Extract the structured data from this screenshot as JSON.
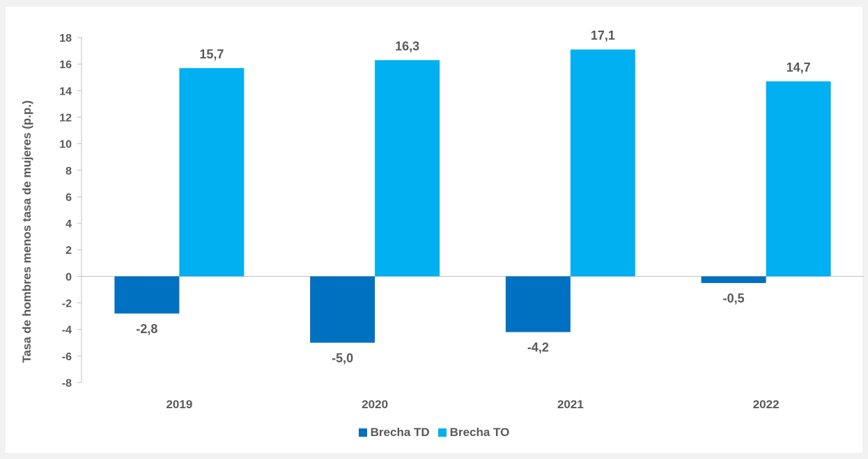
{
  "chart_data": {
    "type": "bar",
    "categories": [
      "2019",
      "2020",
      "2021",
      "2022"
    ],
    "series": [
      {
        "name": "Brecha TD",
        "color": "#0070c0",
        "values": [
          -2.8,
          -5.0,
          -4.2,
          -0.5
        ],
        "labels": [
          "-2,8",
          "-5,0",
          "-4,2",
          "-0,5"
        ]
      },
      {
        "name": "Brecha TO",
        "color": "#00b0f0",
        "values": [
          15.7,
          16.3,
          17.1,
          14.7
        ],
        "labels": [
          "15,7",
          "16,3",
          "17,1",
          "14,7"
        ]
      }
    ],
    "ylabel": "Tasa de hombres menos tasa de mujeres (p.p.)",
    "ylim": [
      -8,
      18
    ],
    "yticks": [
      18,
      16,
      14,
      12,
      10,
      8,
      6,
      4,
      2,
      0,
      -2,
      -4,
      -6,
      -8
    ],
    "legend_position": "bottom",
    "grid": false
  }
}
